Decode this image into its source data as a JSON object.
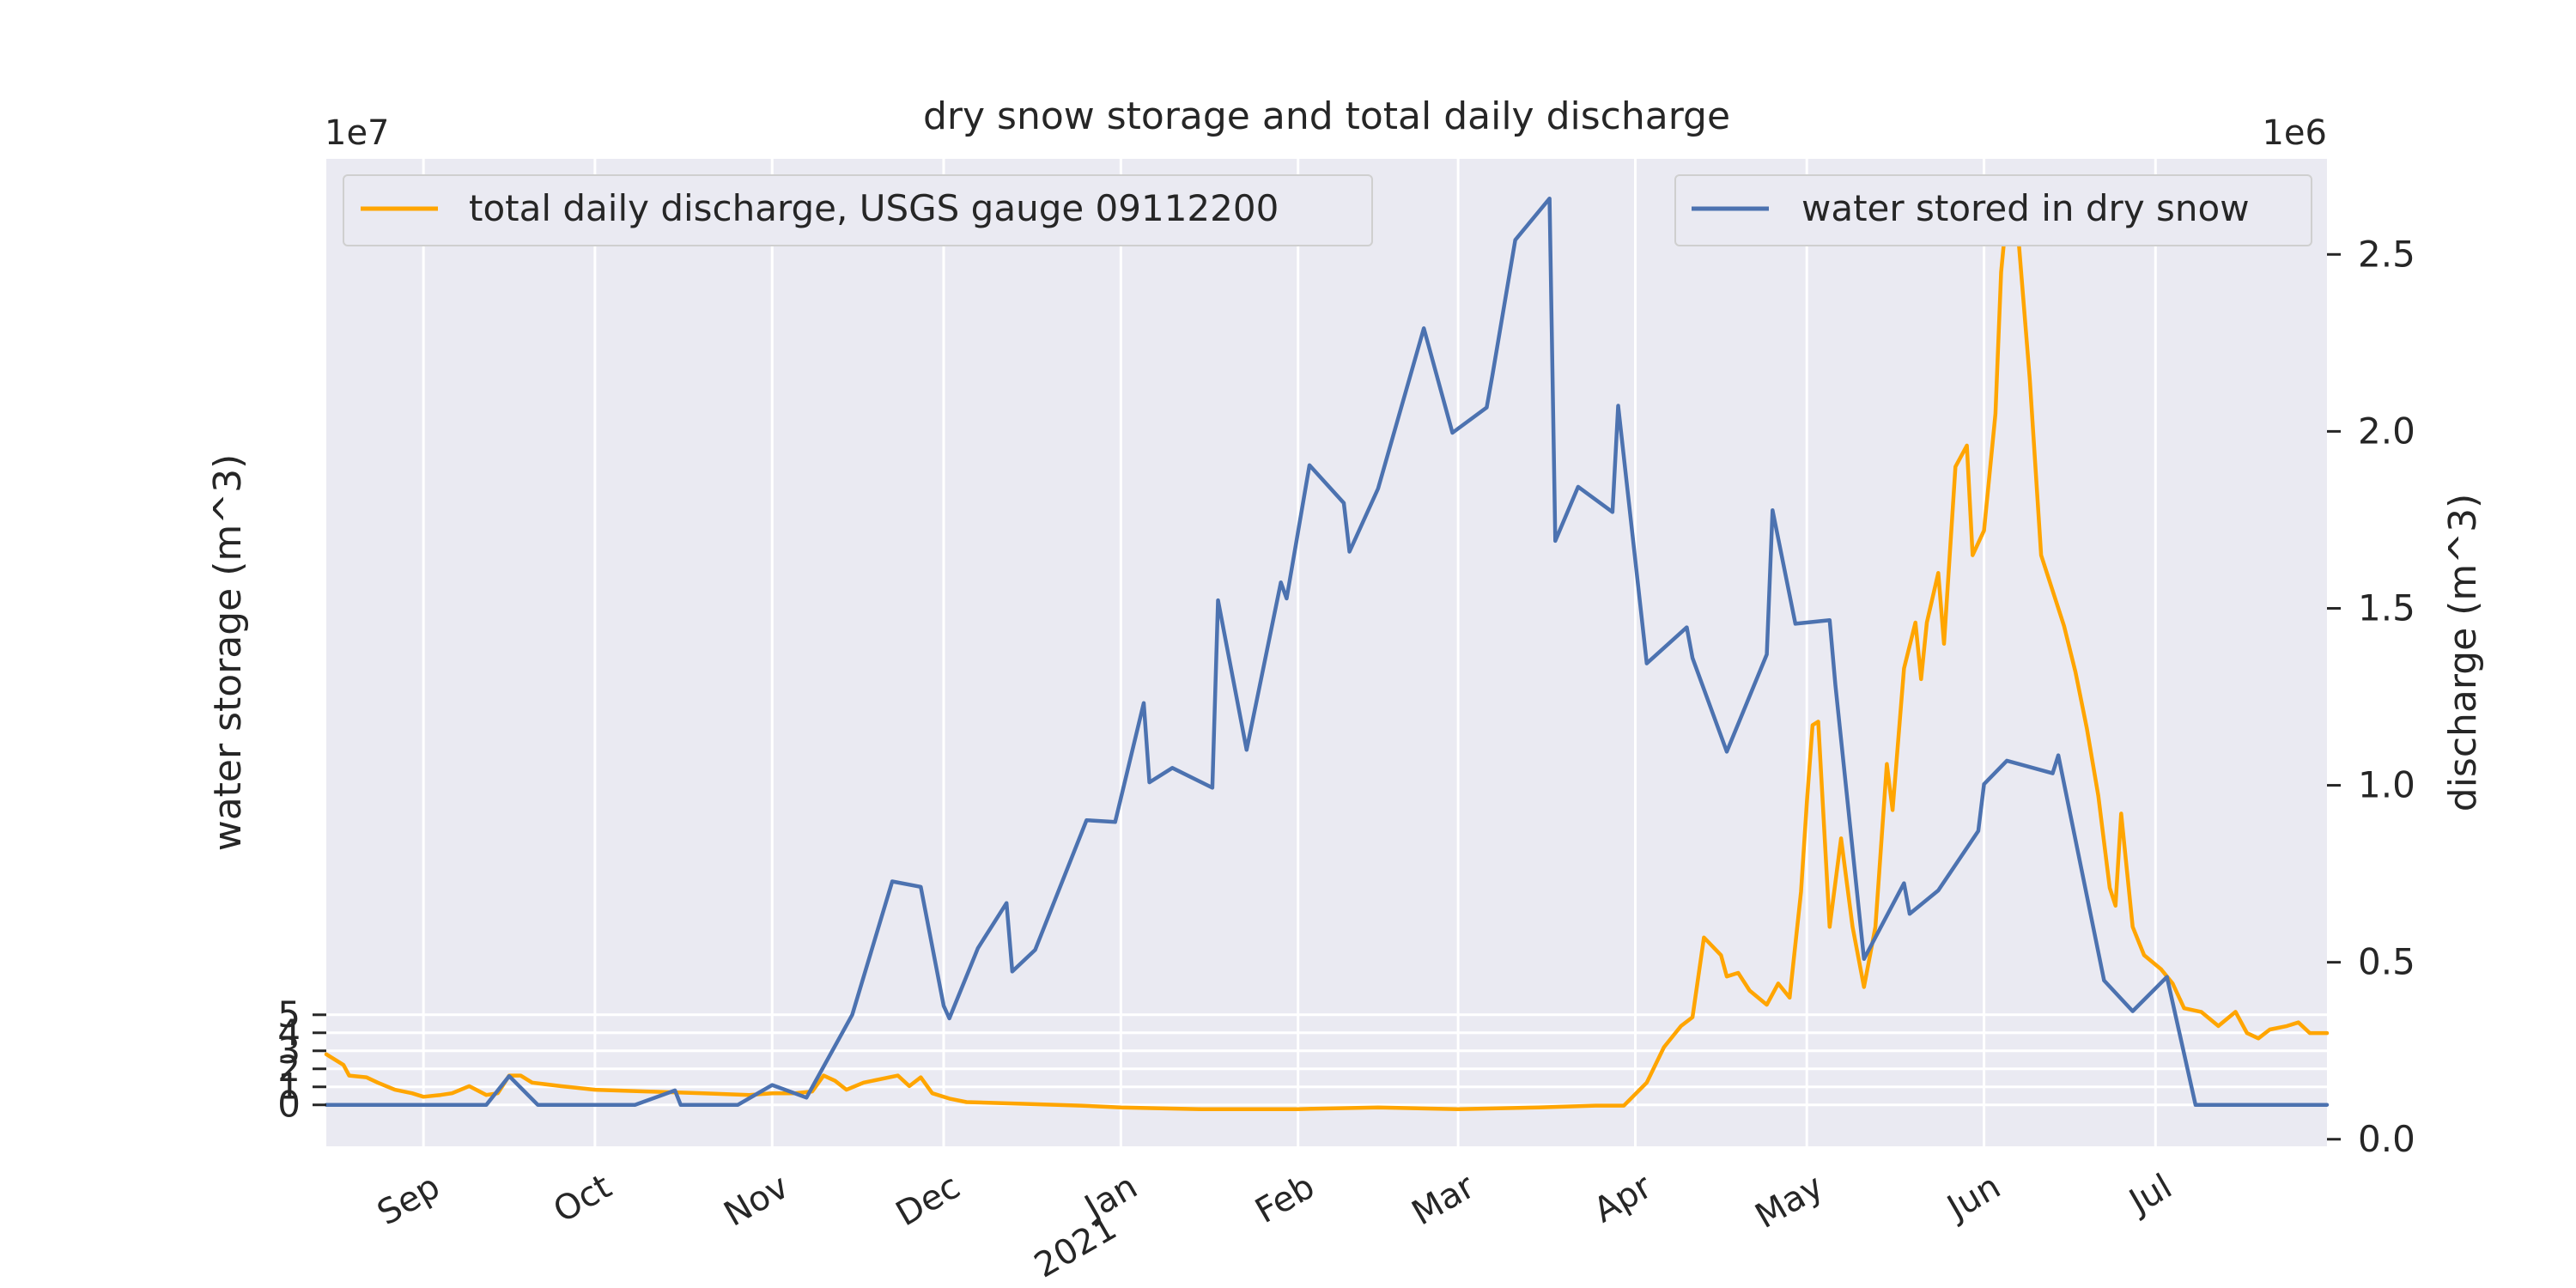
{
  "chart_data": {
    "type": "line",
    "title": "dry snow storage and total daily discharge",
    "x_axis": {
      "range": [
        "2020-08-15",
        "2021-07-31"
      ],
      "ticks": [
        {
          "date": "2020-09-01",
          "label": "Sep"
        },
        {
          "date": "2020-10-01",
          "label": "Oct"
        },
        {
          "date": "2020-11-01",
          "label": "Nov"
        },
        {
          "date": "2020-12-01",
          "label": "Dec"
        },
        {
          "date": "2021-01-01",
          "label": "Jan",
          "sublabel": "2021"
        },
        {
          "date": "2021-02-01",
          "label": "Feb"
        },
        {
          "date": "2021-03-01",
          "label": "Mar"
        },
        {
          "date": "2021-04-01",
          "label": "Apr"
        },
        {
          "date": "2021-05-01",
          "label": "May"
        },
        {
          "date": "2021-06-01",
          "label": "Jun"
        },
        {
          "date": "2021-07-01",
          "label": "Jul"
        }
      ]
    },
    "y_left": {
      "label": "water storage (m^3)",
      "offset_text": "1e7",
      "ylim": [
        -2.3,
        52.5
      ],
      "ticks": [
        0,
        1,
        2,
        3,
        4,
        5
      ],
      "tick_labels": [
        "0",
        "1",
        "2",
        "3",
        "4",
        "5"
      ]
    },
    "y_right": {
      "label": "discharge (m^3)",
      "offset_text": "1e6",
      "ylim": [
        -0.02,
        2.77
      ],
      "ticks": [
        0.0,
        0.5,
        1.0,
        1.5,
        2.0,
        2.5
      ],
      "tick_labels": [
        "0.0",
        "0.5",
        "1.0",
        "1.5",
        "2.0",
        "2.5"
      ]
    },
    "grid": true,
    "series": [
      {
        "name": "water stored in dry snow",
        "axis": "left",
        "color": "#4c72b0",
        "legend": "upper right",
        "points": [
          [
            "2020-08-15",
            0
          ],
          [
            "2020-09-12",
            0
          ],
          [
            "2020-09-16",
            1.6
          ],
          [
            "2020-09-21",
            0
          ],
          [
            "2020-10-08",
            0
          ],
          [
            "2020-10-15",
            0.8
          ],
          [
            "2020-10-16",
            0
          ],
          [
            "2020-10-26",
            0
          ],
          [
            "2020-11-01",
            1.1
          ],
          [
            "2020-11-07",
            0.4
          ],
          [
            "2020-11-15",
            5.0
          ],
          [
            "2020-11-22",
            12.4
          ],
          [
            "2020-11-27",
            12.1
          ],
          [
            "2020-12-01",
            5.5
          ],
          [
            "2020-12-02",
            4.8
          ],
          [
            "2020-12-07",
            8.7
          ],
          [
            "2020-12-12",
            11.2
          ],
          [
            "2020-12-13",
            7.4
          ],
          [
            "2020-12-17",
            8.6
          ],
          [
            "2020-12-26",
            15.8
          ],
          [
            "2020-12-31",
            15.7
          ],
          [
            "2021-01-05",
            22.3
          ],
          [
            "2021-01-06",
            17.9
          ],
          [
            "2021-01-10",
            18.7
          ],
          [
            "2021-01-17",
            17.6
          ],
          [
            "2021-01-18",
            28.0
          ],
          [
            "2021-01-23",
            19.7
          ],
          [
            "2021-01-29",
            29.0
          ],
          [
            "2021-01-30",
            28.1
          ],
          [
            "2021-02-03",
            35.5
          ],
          [
            "2021-02-09",
            33.4
          ],
          [
            "2021-02-10",
            30.7
          ],
          [
            "2021-02-15",
            34.2
          ],
          [
            "2021-02-23",
            43.1
          ],
          [
            "2021-02-28",
            37.3
          ],
          [
            "2021-03-06",
            38.7
          ],
          [
            "2021-03-07",
            40.5
          ],
          [
            "2021-03-11",
            48.0
          ],
          [
            "2021-03-17",
            50.3
          ],
          [
            "2021-03-18",
            31.3
          ],
          [
            "2021-03-22",
            34.3
          ],
          [
            "2021-03-28",
            32.9
          ],
          [
            "2021-03-29",
            38.8
          ],
          [
            "2021-04-03",
            24.5
          ],
          [
            "2021-04-10",
            26.5
          ],
          [
            "2021-04-11",
            24.8
          ],
          [
            "2021-04-17",
            19.6
          ],
          [
            "2021-04-24",
            25.0
          ],
          [
            "2021-04-25",
            33.0
          ],
          [
            "2021-04-29",
            26.7
          ],
          [
            "2021-05-05",
            26.9
          ],
          [
            "2021-05-06",
            23.3
          ],
          [
            "2021-05-11",
            8.1
          ],
          [
            "2021-05-18",
            12.3
          ],
          [
            "2021-05-19",
            10.6
          ],
          [
            "2021-05-24",
            11.9
          ],
          [
            "2021-05-31",
            15.2
          ],
          [
            "2021-06-01",
            17.8
          ],
          [
            "2021-06-05",
            19.1
          ],
          [
            "2021-06-13",
            18.4
          ],
          [
            "2021-06-14",
            19.4
          ],
          [
            "2021-06-22",
            6.9
          ],
          [
            "2021-06-27",
            5.2
          ],
          [
            "2021-07-03",
            7.1
          ],
          [
            "2021-07-08",
            0
          ],
          [
            "2021-07-31",
            0
          ]
        ]
      },
      {
        "name": "total daily discharge, USGS gauge 09112200",
        "axis": "right",
        "color": "#ffa500",
        "legend": "upper left",
        "points": [
          [
            "2020-08-15",
            0.24
          ],
          [
            "2020-08-18",
            0.21
          ],
          [
            "2020-08-19",
            0.18
          ],
          [
            "2020-08-22",
            0.175
          ],
          [
            "2020-08-24",
            0.16
          ],
          [
            "2020-08-27",
            0.14
          ],
          [
            "2020-08-30",
            0.13
          ],
          [
            "2020-09-01",
            0.12
          ],
          [
            "2020-09-04",
            0.125
          ],
          [
            "2020-09-06",
            0.13
          ],
          [
            "2020-09-09",
            0.15
          ],
          [
            "2020-09-12",
            0.125
          ],
          [
            "2020-09-14",
            0.13
          ],
          [
            "2020-09-16",
            0.18
          ],
          [
            "2020-09-18",
            0.18
          ],
          [
            "2020-09-20",
            0.16
          ],
          [
            "2020-09-25",
            0.15
          ],
          [
            "2020-10-01",
            0.14
          ],
          [
            "2020-10-10",
            0.135
          ],
          [
            "2020-10-20",
            0.13
          ],
          [
            "2020-10-28",
            0.125
          ],
          [
            "2020-11-01",
            0.13
          ],
          [
            "2020-11-05",
            0.13
          ],
          [
            "2020-11-08",
            0.135
          ],
          [
            "2020-11-10",
            0.18
          ],
          [
            "2020-11-12",
            0.165
          ],
          [
            "2020-11-14",
            0.14
          ],
          [
            "2020-11-17",
            0.16
          ],
          [
            "2020-11-20",
            0.17
          ],
          [
            "2020-11-23",
            0.18
          ],
          [
            "2020-11-25",
            0.15
          ],
          [
            "2020-11-27",
            0.175
          ],
          [
            "2020-11-29",
            0.13
          ],
          [
            "2020-12-02",
            0.115
          ],
          [
            "2020-12-05",
            0.105
          ],
          [
            "2020-12-15",
            0.1
          ],
          [
            "2020-12-25",
            0.095
          ],
          [
            "2021-01-01",
            0.09
          ],
          [
            "2021-01-15",
            0.085
          ],
          [
            "2021-02-01",
            0.085
          ],
          [
            "2021-02-15",
            0.09
          ],
          [
            "2021-03-01",
            0.085
          ],
          [
            "2021-03-15",
            0.09
          ],
          [
            "2021-03-25",
            0.095
          ],
          [
            "2021-03-30",
            0.095
          ],
          [
            "2021-04-03",
            0.16
          ],
          [
            "2021-04-06",
            0.26
          ],
          [
            "2021-04-09",
            0.32
          ],
          [
            "2021-04-11",
            0.345
          ],
          [
            "2021-04-13",
            0.57
          ],
          [
            "2021-04-16",
            0.52
          ],
          [
            "2021-04-17",
            0.46
          ],
          [
            "2021-04-19",
            0.47
          ],
          [
            "2021-04-21",
            0.42
          ],
          [
            "2021-04-24",
            0.38
          ],
          [
            "2021-04-26",
            0.44
          ],
          [
            "2021-04-28",
            0.4
          ],
          [
            "2021-04-30",
            0.7
          ],
          [
            "2021-05-01",
            0.95
          ],
          [
            "2021-05-02",
            1.17
          ],
          [
            "2021-05-03",
            1.18
          ],
          [
            "2021-05-05",
            0.6
          ],
          [
            "2021-05-07",
            0.85
          ],
          [
            "2021-05-09",
            0.6
          ],
          [
            "2021-05-11",
            0.43
          ],
          [
            "2021-05-13",
            0.6
          ],
          [
            "2021-05-15",
            1.06
          ],
          [
            "2021-05-16",
            0.93
          ],
          [
            "2021-05-18",
            1.33
          ],
          [
            "2021-05-20",
            1.46
          ],
          [
            "2021-05-21",
            1.3
          ],
          [
            "2021-05-22",
            1.46
          ],
          [
            "2021-05-24",
            1.6
          ],
          [
            "2021-05-25",
            1.4
          ],
          [
            "2021-05-27",
            1.9
          ],
          [
            "2021-05-29",
            1.96
          ],
          [
            "2021-05-30",
            1.65
          ],
          [
            "2021-06-01",
            1.72
          ],
          [
            "2021-06-03",
            2.05
          ],
          [
            "2021-06-04",
            2.45
          ],
          [
            "2021-06-05",
            2.62
          ],
          [
            "2021-06-07",
            2.55
          ],
          [
            "2021-06-09",
            2.15
          ],
          [
            "2021-06-11",
            1.65
          ],
          [
            "2021-06-13",
            1.55
          ],
          [
            "2021-06-15",
            1.45
          ],
          [
            "2021-06-17",
            1.32
          ],
          [
            "2021-06-19",
            1.16
          ],
          [
            "2021-06-21",
            0.97
          ],
          [
            "2021-06-23",
            0.71
          ],
          [
            "2021-06-24",
            0.66
          ],
          [
            "2021-06-25",
            0.92
          ],
          [
            "2021-06-27",
            0.6
          ],
          [
            "2021-06-29",
            0.52
          ],
          [
            "2021-07-02",
            0.48
          ],
          [
            "2021-07-04",
            0.44
          ],
          [
            "2021-07-06",
            0.37
          ],
          [
            "2021-07-09",
            0.36
          ],
          [
            "2021-07-12",
            0.32
          ],
          [
            "2021-07-15",
            0.36
          ],
          [
            "2021-07-17",
            0.3
          ],
          [
            "2021-07-19",
            0.285
          ],
          [
            "2021-07-21",
            0.31
          ],
          [
            "2021-07-24",
            0.32
          ],
          [
            "2021-07-26",
            0.33
          ],
          [
            "2021-07-28",
            0.3
          ],
          [
            "2021-07-31",
            0.3
          ]
        ]
      }
    ]
  }
}
